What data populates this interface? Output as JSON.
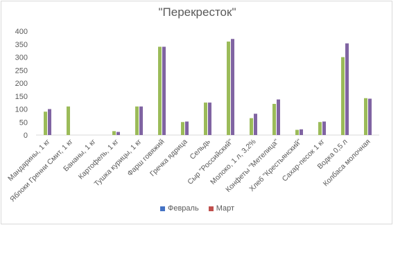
{
  "chart_data": {
    "type": "bar",
    "title": "\"Перекресток\"",
    "xlabel": "",
    "ylabel": "",
    "ylim": [
      0,
      400
    ],
    "yticks": [
      0,
      50,
      100,
      150,
      200,
      250,
      300,
      350,
      400
    ],
    "grid": false,
    "legend_position": "bottom",
    "categories": [
      "Мандарины, 1 кг",
      "Яблоки Гренни Смит, 1 кг",
      "Бананы, 1 кг",
      "Картофель, 1 кг",
      "Тушка курицы, 1 кг",
      "Фарш говяжий",
      "Гречка ядрица",
      "Сельдь",
      "Сыр \"Российский\"",
      "Молоко, 1 л, 3,2%",
      "Конфеты \"Метелица\"",
      "Хлеб \"Крестьянский\"",
      "Сахар-песок 1 кг",
      "Водка 0,5 л",
      "Колбаса молочная"
    ],
    "series": [
      {
        "name": "Февраль",
        "legend_color": "#4472c4",
        "bar_color": "#9bbb59",
        "values": [
          90,
          110,
          null,
          15,
          110,
          340,
          50,
          125,
          360,
          65,
          120,
          20,
          50,
          300,
          142
        ]
      },
      {
        "name": "Март",
        "legend_color": "#c0504d",
        "bar_color": "#8064a2",
        "values": [
          100,
          null,
          null,
          12,
          110,
          340,
          52,
          125,
          370,
          82,
          137,
          22,
          52,
          353,
          140
        ]
      }
    ]
  }
}
